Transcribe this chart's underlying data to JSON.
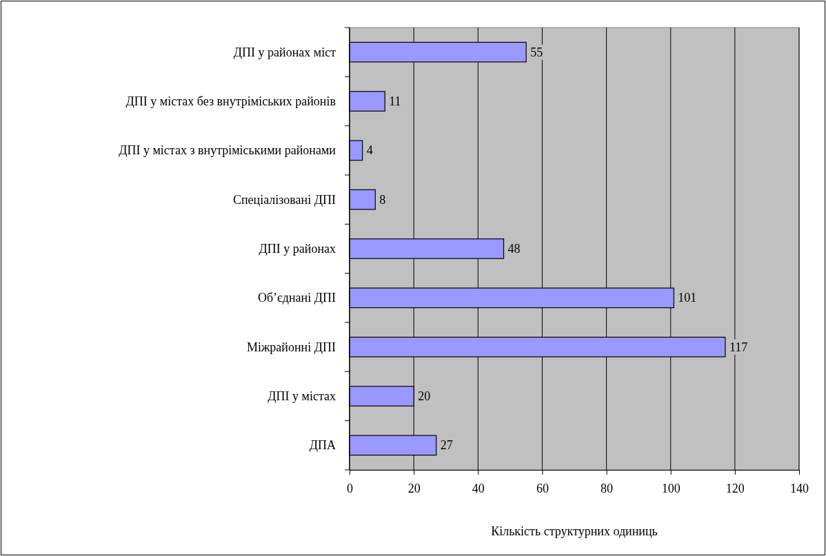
{
  "chart_data": {
    "type": "bar",
    "orientation": "horizontal",
    "xlabel": "Кількість структурних одиниць",
    "categories": [
      "ДПІ у районах міст",
      "ДПІ у містах без внутріміських районів",
      "ДПІ у містах з внутріміськими районами",
      "Спеціалізовані ДПІ",
      "ДПІ у районах",
      "Об’єднані ДПІ",
      "Міжрайонні ДПІ",
      "ДПІ у містах",
      "ДПА"
    ],
    "values": [
      55,
      11,
      4,
      8,
      48,
      101,
      117,
      20,
      27
    ],
    "color": "#9999ff",
    "xlim": [
      0,
      140
    ],
    "xticks": [
      0,
      20,
      40,
      60,
      80,
      100,
      120,
      140
    ],
    "grid": "x",
    "data_labels": true
  }
}
